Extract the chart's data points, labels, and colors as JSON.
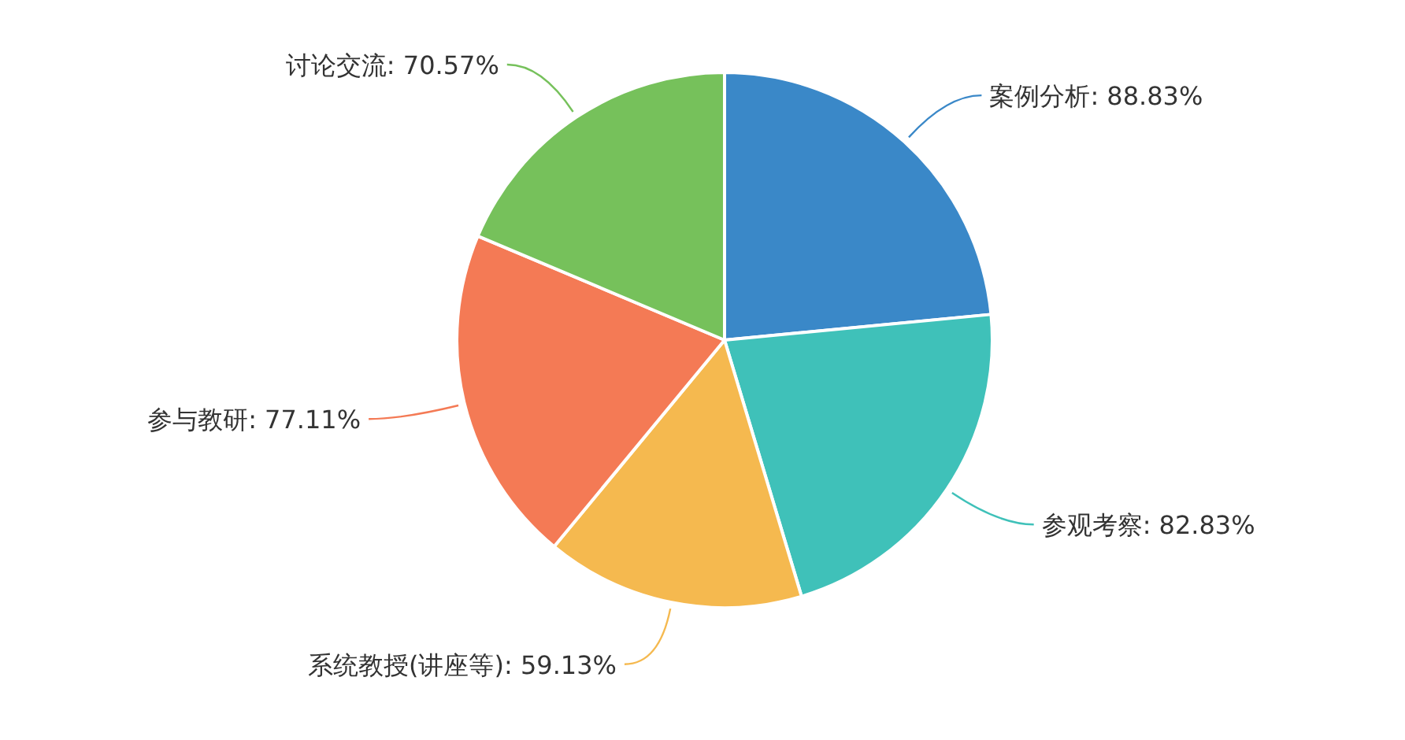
{
  "chart_data": {
    "type": "pie",
    "categories": [
      "案例分析",
      "参观考察",
      "系统教授(讲座等)",
      "参与教研",
      "讨论交流"
    ],
    "values": [
      88.83,
      82.83,
      59.13,
      77.11,
      70.57
    ],
    "value_labels": [
      "88.83%",
      "82.83%",
      "59.13%",
      "77.11%",
      "70.57%"
    ],
    "colors": [
      "#3a88c8",
      "#3fc1b9",
      "#f5b94f",
      "#f47a55",
      "#76c15b"
    ]
  }
}
